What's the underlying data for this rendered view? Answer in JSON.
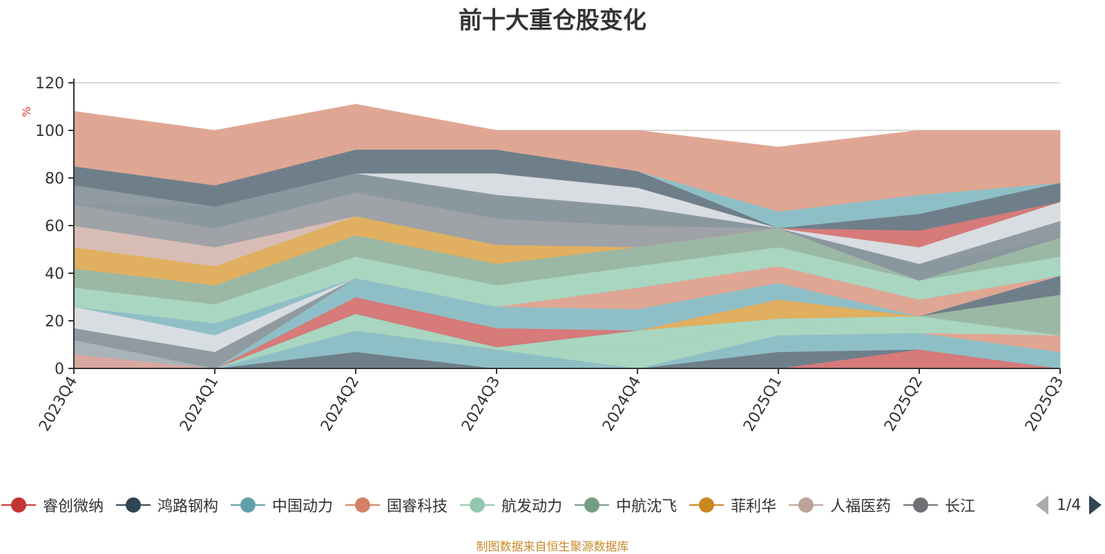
{
  "chart_data": {
    "type": "area",
    "stacked": true,
    "title": "前十大重仓股变化",
    "ylabel": "%",
    "ylim": [
      0,
      120
    ],
    "yticks": [
      0,
      20,
      40,
      60,
      80,
      100,
      120
    ],
    "grid": true,
    "legend_position": "bottom",
    "categories": [
      "2023Q4",
      "2024Q1",
      "2024Q2",
      "2024Q3",
      "2024Q4",
      "2025Q1",
      "2025Q2",
      "2025Q3"
    ],
    "series": [
      {
        "color": "#d67a7a",
        "values": [
          0,
          0,
          0,
          0,
          0,
          0,
          8,
          0
        ]
      },
      {
        "color": "#6f7f8a",
        "values": [
          0,
          0,
          7,
          0,
          0,
          7,
          0,
          0
        ]
      },
      {
        "color": "#8fbfc6",
        "values": [
          0,
          0,
          9,
          8,
          0,
          7,
          7,
          7
        ]
      },
      {
        "color": "#a9d6c0",
        "values": [
          0,
          0,
          7,
          0,
          8,
          7,
          0,
          0
        ]
      },
      {
        "color": "#e0a694",
        "values": [
          0,
          0,
          0,
          0,
          0,
          0,
          0,
          7
        ]
      },
      {
        "color": "#a9d6c0",
        "values": [
          0,
          0,
          0,
          0,
          8,
          0,
          0,
          0
        ]
      },
      {
        "color": "#a9d6c0",
        "values": [
          0,
          0,
          0,
          1,
          0,
          0,
          7,
          0
        ]
      },
      {
        "color": "#9bb8a5",
        "values": [
          0,
          0,
          0,
          0,
          0,
          0,
          0,
          17
        ]
      },
      {
        "color": "#e0b060",
        "values": [
          0,
          0,
          0,
          0,
          0,
          8,
          0,
          0
        ]
      },
      {
        "color": "#6f7f8a",
        "values": [
          0,
          0,
          0,
          0,
          0,
          0,
          0,
          8
        ]
      },
      {
        "color": "#d67a7a",
        "values": [
          0,
          0,
          7,
          8,
          0,
          0,
          0,
          0
        ]
      },
      {
        "color": "#8fbfc6",
        "values": [
          0,
          0,
          8,
          9,
          9,
          7,
          0,
          0
        ]
      },
      {
        "color": "#e0a694",
        "values": [
          0,
          0,
          0,
          0,
          9,
          7,
          7,
          0
        ]
      },
      {
        "color": "#d8a8a0",
        "values": [
          6,
          0,
          0,
          0,
          0,
          0,
          0,
          0
        ]
      },
      {
        "color": "#a9b3b8",
        "values": [
          6,
          0,
          0,
          0,
          0,
          0,
          0,
          0
        ]
      },
      {
        "color": "#8f9aa1",
        "values": [
          5,
          7,
          0,
          0,
          0,
          0,
          0,
          0
        ]
      },
      {
        "color": "#d8dde2",
        "values": [
          9,
          7,
          0,
          0,
          0,
          0,
          0,
          0
        ]
      },
      {
        "color": "#8fbfc6",
        "values": [
          0,
          5,
          0,
          0,
          0,
          0,
          0,
          0
        ]
      },
      {
        "color": "#a9d6c0",
        "values": [
          8,
          8,
          9,
          9,
          9,
          8,
          8,
          8
        ]
      },
      {
        "color": "#9bb8a5",
        "values": [
          8,
          8,
          9,
          9,
          8,
          8,
          0,
          8
        ]
      },
      {
        "color": "#e0b060",
        "values": [
          9,
          8,
          8,
          8,
          0,
          0,
          0,
          0
        ]
      },
      {
        "color": "#d8bcb6",
        "values": [
          9,
          8,
          0,
          0,
          0,
          0,
          0,
          0
        ]
      },
      {
        "color": "#9fa2a6",
        "values": [
          9,
          8,
          10,
          11,
          9,
          0,
          0,
          0
        ]
      },
      {
        "color": "#8a979e",
        "values": [
          0,
          9,
          8,
          10,
          8,
          0,
          7,
          0
        ]
      },
      {
        "color": "#8f9aa1",
        "values": [
          8,
          0,
          0,
          0,
          0,
          0,
          0,
          7
        ]
      },
      {
        "color": "#d8dde2",
        "values": [
          0,
          0,
          0,
          9,
          8,
          0,
          7,
          8
        ]
      },
      {
        "color": "#d67a7a",
        "values": [
          0,
          0,
          0,
          0,
          0,
          0,
          7,
          0
        ]
      },
      {
        "color": "#6f7f8a",
        "values": [
          8,
          9,
          10,
          10,
          7,
          0,
          7,
          0
        ]
      },
      {
        "color": "#6f7f8a",
        "values": [
          0,
          0,
          0,
          0,
          0,
          0,
          0,
          8
        ]
      },
      {
        "color": "#8fbfc6",
        "values": [
          0,
          0,
          0,
          0,
          0,
          7,
          8,
          0
        ]
      },
      {
        "color": "#e0a694",
        "values": [
          23,
          23,
          19,
          8,
          17,
          27,
          27,
          22
        ]
      }
    ]
  },
  "legend": {
    "items": [
      {
        "label": "睿创微纳",
        "color": "#c23531"
      },
      {
        "label": "鸿路钢构",
        "color": "#2f4554"
      },
      {
        "label": "中国动力",
        "color": "#61a0a8"
      },
      {
        "label": "国睿科技",
        "color": "#d48265"
      },
      {
        "label": "航发动力",
        "color": "#91c7ae"
      },
      {
        "label": "中航沈飞",
        "color": "#749f83"
      },
      {
        "label": "菲利华",
        "color": "#ca8622"
      },
      {
        "label": "人福医药",
        "color": "#bda29a"
      },
      {
        "label": "长江",
        "color": "#6e7074"
      }
    ],
    "page_indicator": "1/4"
  },
  "source_note": "制图数据来自恒生聚源数据库"
}
